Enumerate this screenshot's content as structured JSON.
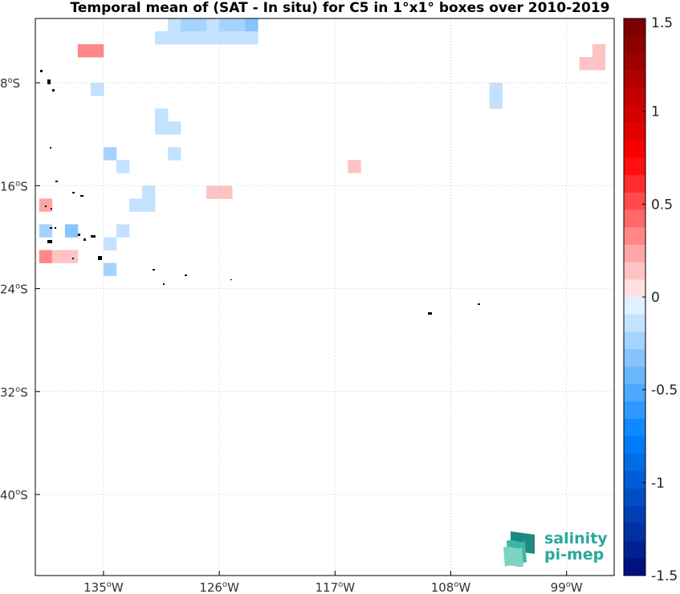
{
  "chart_data": {
    "type": "heatmap",
    "title": "Temporal mean of (SAT - In situ) for C5 in 1°x1° boxes over 2010-2019",
    "x_ticks": [
      "135°W",
      "126°W",
      "117°W",
      "108°W",
      "99°W"
    ],
    "y_ticks": [
      "8°S",
      "16°S",
      "24°S",
      "32°S",
      "40°S"
    ],
    "xlim": [
      -140,
      -95
    ],
    "ylim": [
      -46,
      -3
    ],
    "grid": true,
    "colorbar": {
      "range": [
        -1.5,
        1.5
      ],
      "ticks": [
        "1.5",
        "1",
        "0.5",
        "0",
        "-0.5",
        "-1",
        "-1.5"
      ],
      "colormap": "blue-white-red"
    },
    "cells": [
      {
        "lon": -129.5,
        "lat": -3.5,
        "value": -0.1
      },
      {
        "lon": -128.5,
        "lat": -3.5,
        "value": -0.2
      },
      {
        "lon": -127.5,
        "lat": -3.5,
        "value": -0.2
      },
      {
        "lon": -126.5,
        "lat": -3.5,
        "value": -0.1
      },
      {
        "lon": -125.5,
        "lat": -3.5,
        "value": -0.2
      },
      {
        "lon": -124.5,
        "lat": -3.5,
        "value": -0.2
      },
      {
        "lon": -123.5,
        "lat": -3.5,
        "value": -0.3
      },
      {
        "lon": -130.5,
        "lat": -4.5,
        "value": -0.1
      },
      {
        "lon": -129.5,
        "lat": -4.5,
        "value": -0.1
      },
      {
        "lon": -128.5,
        "lat": -4.5,
        "value": -0.1
      },
      {
        "lon": -127.5,
        "lat": -4.5,
        "value": -0.1
      },
      {
        "lon": -126.5,
        "lat": -4.5,
        "value": -0.1
      },
      {
        "lon": -125.5,
        "lat": -4.5,
        "value": -0.1
      },
      {
        "lon": -124.5,
        "lat": -4.5,
        "value": -0.1
      },
      {
        "lon": -123.5,
        "lat": -4.5,
        "value": -0.1
      },
      {
        "lon": -136.5,
        "lat": -5.5,
        "value": 0.3
      },
      {
        "lon": -135.5,
        "lat": -5.5,
        "value": 0.3
      },
      {
        "lon": -96.5,
        "lat": -5.5,
        "value": 0.1
      },
      {
        "lon": -97.5,
        "lat": -6.5,
        "value": 0.1
      },
      {
        "lon": -96.5,
        "lat": -6.5,
        "value": 0.1
      },
      {
        "lon": -135.5,
        "lat": -8.5,
        "value": -0.1
      },
      {
        "lon": -104.5,
        "lat": -8.5,
        "value": -0.1
      },
      {
        "lon": -104.5,
        "lat": -9.5,
        "value": -0.1
      },
      {
        "lon": -130.5,
        "lat": -10.5,
        "value": -0.1
      },
      {
        "lon": -130.5,
        "lat": -11.5,
        "value": -0.1
      },
      {
        "lon": -129.5,
        "lat": -11.5,
        "value": -0.1
      },
      {
        "lon": -134.5,
        "lat": -13.5,
        "value": -0.25
      },
      {
        "lon": -129.5,
        "lat": -13.5,
        "value": -0.1
      },
      {
        "lon": -133.5,
        "lat": -14.5,
        "value": -0.1
      },
      {
        "lon": -115.5,
        "lat": -14.5,
        "value": 0.15
      },
      {
        "lon": -131.5,
        "lat": -16.5,
        "value": -0.1
      },
      {
        "lon": -126.5,
        "lat": -16.5,
        "value": 0.15
      },
      {
        "lon": -125.5,
        "lat": -16.5,
        "value": 0.15
      },
      {
        "lon": -132.5,
        "lat": -17.5,
        "value": -0.1
      },
      {
        "lon": -131.5,
        "lat": -17.5,
        "value": -0.1
      },
      {
        "lon": -139.5,
        "lat": -17.5,
        "value": 0.2
      },
      {
        "lon": -139.5,
        "lat": -19.5,
        "value": -0.2
      },
      {
        "lon": -137.5,
        "lat": -19.5,
        "value": -0.3
      },
      {
        "lon": -133.5,
        "lat": -19.5,
        "value": -0.1
      },
      {
        "lon": -134.5,
        "lat": -20.5,
        "value": -0.1
      },
      {
        "lon": -139.5,
        "lat": -21.5,
        "value": 0.35
      },
      {
        "lon": -138.5,
        "lat": -21.5,
        "value": 0.1
      },
      {
        "lon": -137.5,
        "lat": -21.5,
        "value": 0.1
      },
      {
        "lon": -134.5,
        "lat": -22.5,
        "value": -0.25
      }
    ]
  }
}
